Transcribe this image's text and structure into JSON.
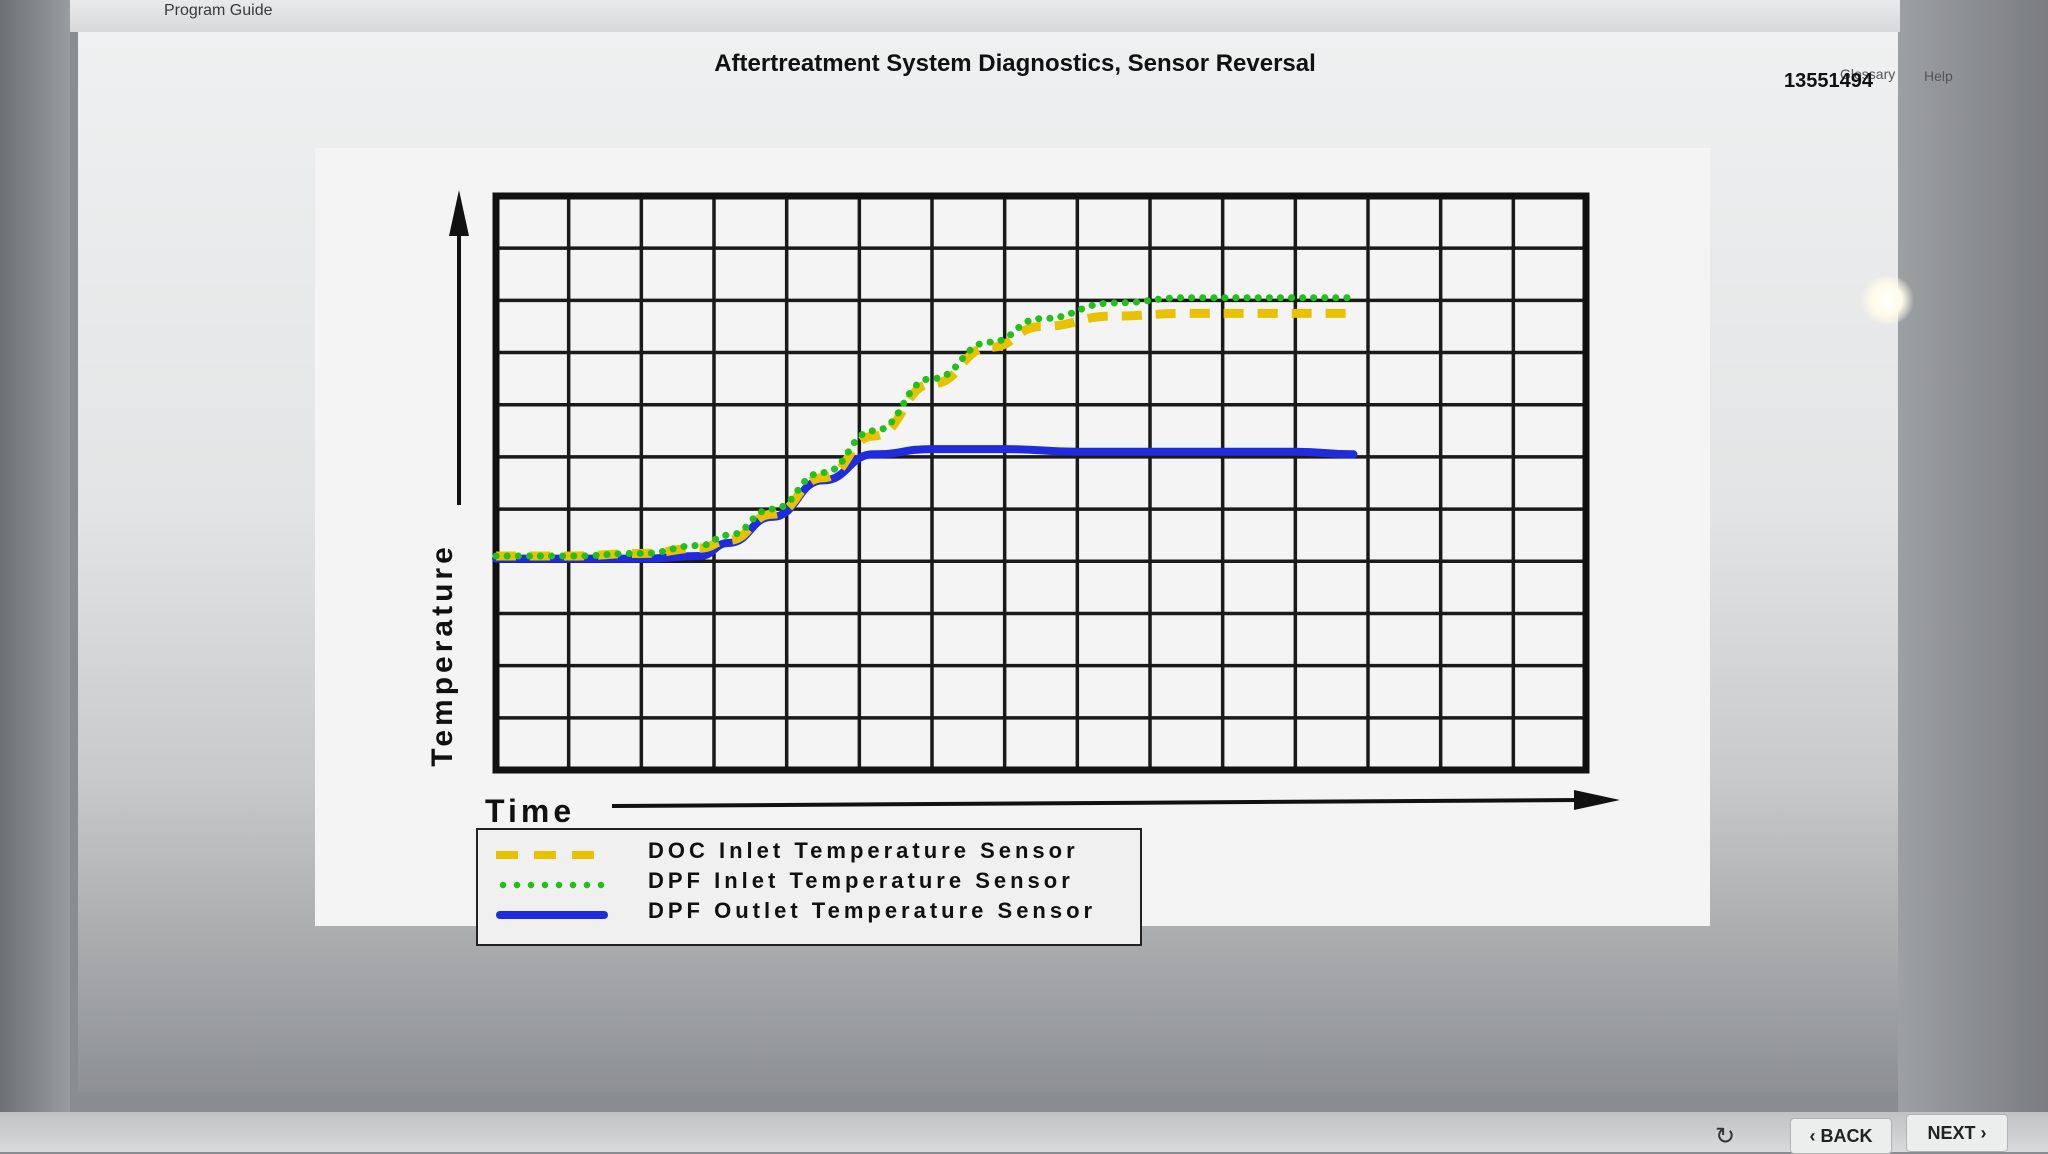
{
  "app": {
    "title": "Program Guide",
    "links": {
      "glossary": "Glossary",
      "help": "Help"
    }
  },
  "page": {
    "title": "Aftertreatment System Diagnostics, Sensor Reversal",
    "doc_number": "13551494"
  },
  "nav": {
    "back_label": "BACK",
    "next_label": "NEXT",
    "back_icon": "chevron-left-icon",
    "next_icon": "chevron-right-icon",
    "refresh_icon": "refresh-icon"
  },
  "chart_data": {
    "type": "line",
    "title": "",
    "xlabel": "Time",
    "ylabel": "Temperature",
    "grid": true,
    "x_ticks_labeled": false,
    "y_ticks_labeled": false,
    "xlim": [
      0,
      15
    ],
    "ylim": [
      0,
      11
    ],
    "legend_position": "bottom-left",
    "series": [
      {
        "name": "DOC Inlet Temperature Sensor",
        "color": "#e8c200",
        "style": "dashed",
        "x": [
          0,
          1,
          2,
          2.8,
          3.2,
          3.8,
          4.5,
          5.2,
          6,
          6.8,
          7.5,
          8.5,
          9.5,
          10.5,
          11.8
        ],
        "y": [
          4.1,
          4.1,
          4.15,
          4.25,
          4.4,
          4.9,
          5.6,
          6.4,
          7.4,
          8.1,
          8.5,
          8.7,
          8.75,
          8.75,
          8.75
        ]
      },
      {
        "name": "DPF Inlet Temperature Sensor",
        "color": "#22c01a",
        "style": "dotted",
        "x": [
          0,
          1,
          2,
          2.8,
          3.2,
          3.8,
          4.5,
          5.2,
          6,
          6.8,
          7.5,
          8.5,
          9.5,
          10.5,
          11.8
        ],
        "y": [
          4.1,
          4.1,
          4.15,
          4.3,
          4.5,
          5.0,
          5.7,
          6.5,
          7.5,
          8.2,
          8.65,
          8.95,
          9.05,
          9.05,
          9.05
        ]
      },
      {
        "name": "DPF Outlet Temperature Sensor",
        "color": "#1f2bdc",
        "style": "solid",
        "x": [
          0,
          1,
          2,
          2.8,
          3.2,
          3.8,
          4.5,
          5.2,
          6,
          7,
          8,
          9,
          10,
          11,
          11.8
        ],
        "y": [
          4.05,
          4.05,
          4.05,
          4.1,
          4.35,
          4.85,
          5.55,
          6.05,
          6.15,
          6.15,
          6.1,
          6.1,
          6.1,
          6.1,
          6.05
        ]
      }
    ]
  }
}
